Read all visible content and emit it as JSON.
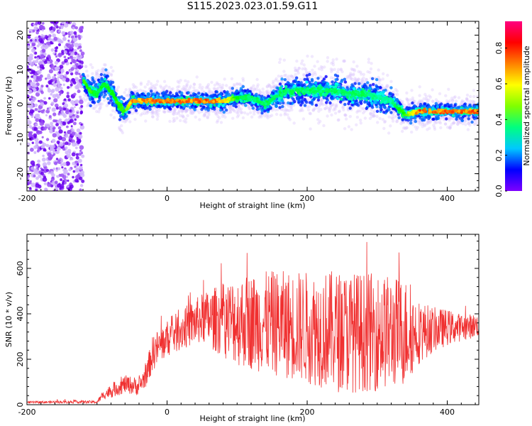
{
  "title": "S115.2023.023.01.59.G11",
  "chart_data": [
    {
      "type": "heatmap",
      "xlabel": "Height of straight line (km)",
      "ylabel": "Frequency (Hz)",
      "xlim": [
        -200,
        445
      ],
      "ylim": [
        -25,
        24
      ],
      "xticks": [
        -200,
        0,
        200,
        400
      ],
      "yticks": [
        -20,
        -10,
        0,
        10,
        20
      ],
      "colorbar": {
        "label": "Normalized spectral amplitude",
        "ticks": [
          0.0,
          0.2,
          0.4,
          0.6,
          0.8
        ],
        "range": [
          0,
          0.95
        ],
        "colormap": "hsv-reversed",
        "colors": [
          "#7f00ff",
          "#0000ff",
          "#00c8ff",
          "#00ff80",
          "#80ff00",
          "#ffff00",
          "#ff8000",
          "#ff0000",
          "#ff0080"
        ]
      },
      "ridge": {
        "x": [
          -120,
          -110,
          -100,
          -90,
          -80,
          -70,
          -60,
          -50,
          -40,
          -20,
          0,
          20,
          40,
          60,
          80,
          100,
          120,
          140,
          160,
          180,
          200,
          220,
          240,
          260,
          280,
          300,
          320,
          340,
          360,
          380,
          400,
          420,
          445
        ],
        "y": [
          7,
          4,
          3,
          6,
          4,
          0,
          -2,
          1,
          1,
          1,
          1,
          1,
          1,
          1,
          1,
          2,
          2,
          0,
          3,
          4,
          4,
          4,
          4,
          3,
          3,
          2,
          1,
          -3,
          -2,
          -2,
          -2,
          -2,
          -2
        ],
        "amplitude": [
          0.6,
          0.55,
          0.5,
          0.5,
          0.5,
          0.55,
          0.6,
          0.85,
          0.8,
          0.85,
          0.85,
          0.85,
          0.85,
          0.85,
          0.8,
          0.5,
          0.45,
          0.45,
          0.45,
          0.45,
          0.45,
          0.45,
          0.45,
          0.45,
          0.45,
          0.4,
          0.4,
          0.6,
          0.85,
          0.85,
          0.85,
          0.85,
          0.85
        ]
      },
      "noise_region": {
        "x": [
          -200,
          -120
        ],
        "y": [
          -25,
          24
        ]
      }
    },
    {
      "type": "line",
      "xlabel": "Height of straight line (km)",
      "ylabel": "SNR (10 * v/v)",
      "xlim": [
        -200,
        445
      ],
      "ylim": [
        0,
        750
      ],
      "xticks": [
        -200,
        0,
        200,
        400
      ],
      "yticks": [
        0,
        200,
        400,
        600
      ],
      "color": "#f03030",
      "envelope": {
        "x": [
          -200,
          -150,
          -100,
          -90,
          -80,
          -60,
          -40,
          -30,
          -20,
          0,
          20,
          50,
          100,
          150,
          200,
          250,
          300,
          340,
          360,
          380,
          400,
          420,
          445
        ],
        "mean": [
          10,
          12,
          12,
          45,
          60,
          90,
          80,
          130,
          230,
          290,
          330,
          380,
          370,
          360,
          340,
          320,
          320,
          320,
          320,
          330,
          340,
          340,
          350
        ],
        "spread": [
          5,
          6,
          6,
          20,
          30,
          40,
          40,
          50,
          80,
          80,
          90,
          110,
          200,
          230,
          250,
          270,
          260,
          240,
          140,
          100,
          80,
          60,
          50
        ],
        "peak": [
          20,
          25,
          25,
          80,
          100,
          150,
          150,
          200,
          500,
          400,
          470,
          560,
          730,
          690,
          680,
          740,
          710,
          690,
          520,
          480,
          470,
          460,
          450
        ]
      }
    }
  ]
}
